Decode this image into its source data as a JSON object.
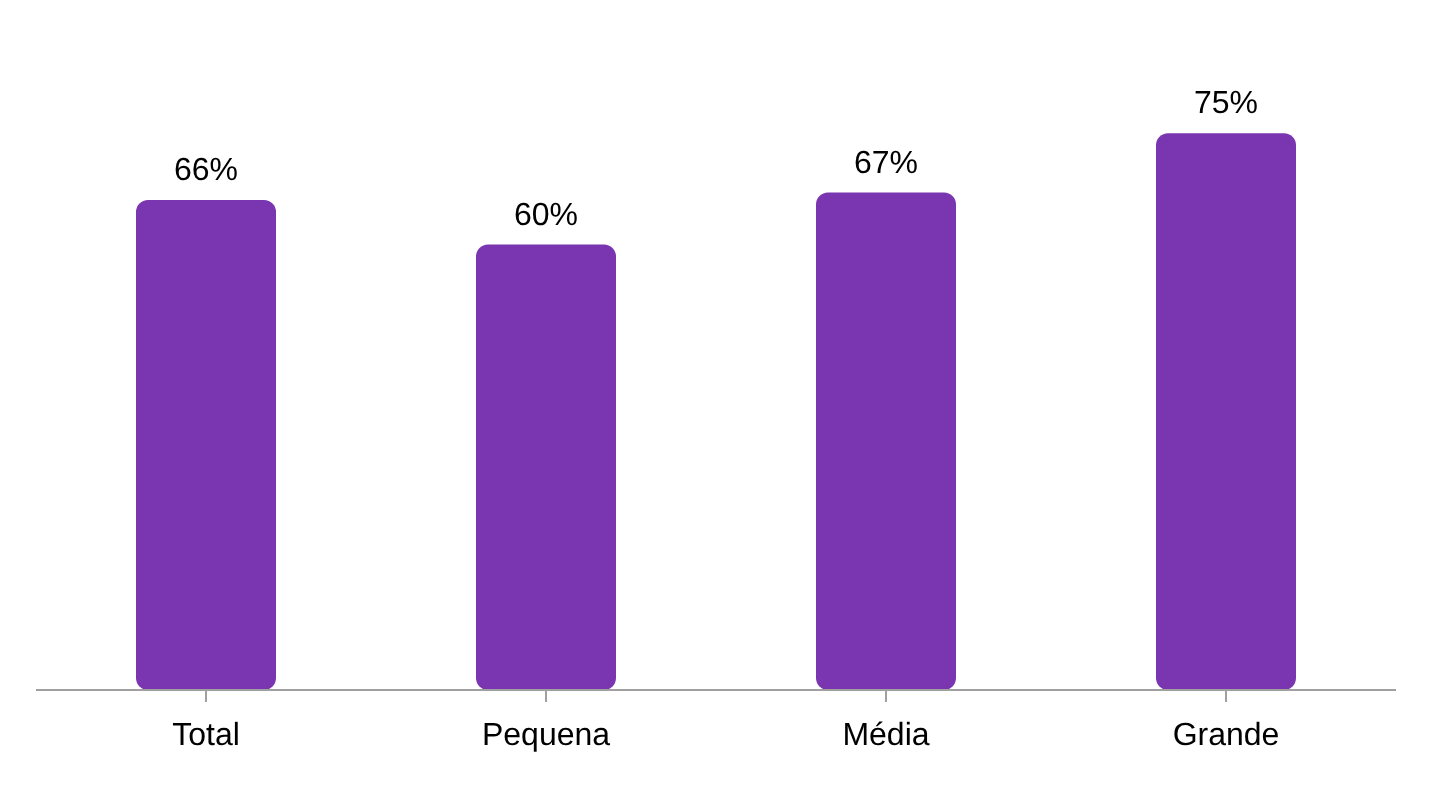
{
  "chart_data": {
    "type": "bar",
    "categories": [
      "Total",
      "Pequena",
      "Média",
      "Grande"
    ],
    "values": [
      66,
      60,
      67,
      75
    ],
    "value_labels": [
      "66%",
      "60%",
      "67%",
      "75%"
    ],
    "color": "#7a35b0",
    "grid": false,
    "legend": false
  }
}
